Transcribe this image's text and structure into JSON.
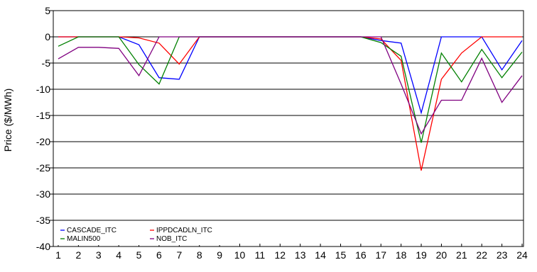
{
  "chart_data": {
    "type": "line",
    "title": "",
    "xlabel": "",
    "ylabel": "Price ($/MWh)",
    "x": [
      1,
      2,
      3,
      4,
      5,
      6,
      7,
      8,
      9,
      10,
      11,
      12,
      13,
      14,
      15,
      16,
      17,
      18,
      19,
      20,
      21,
      22,
      23,
      24
    ],
    "ylim": [
      -40,
      5
    ],
    "yticks": [
      5,
      0,
      -5,
      -10,
      -15,
      -20,
      -25,
      -30,
      -35,
      -40
    ],
    "grid": "horizontal",
    "legend_position": "bottom-left",
    "series": [
      {
        "name": "CASCADE_ITC",
        "color": "#0000ff",
        "values": [
          0,
          0,
          0,
          0,
          -1.5,
          -7.8,
          -8.1,
          0,
          0,
          0,
          0,
          0,
          0,
          0,
          0,
          0,
          -0.7,
          -1.2,
          -14.5,
          0,
          0,
          0,
          -6.3,
          -0.7
        ]
      },
      {
        "name": "IPPDCADLN_ITC",
        "color": "#ff0000",
        "values": [
          0,
          0,
          0,
          0,
          -0.2,
          -1.2,
          -5.2,
          0,
          0,
          0,
          0,
          0,
          0,
          0,
          0,
          0,
          -0.4,
          -4.5,
          -25.5,
          -8.1,
          -3.1,
          0,
          0,
          0
        ]
      },
      {
        "name": "MALIN500",
        "color": "#008000",
        "values": [
          -1.8,
          0,
          0,
          0,
          -5.3,
          -9.0,
          0,
          0,
          0,
          0,
          0,
          0,
          0,
          0,
          0,
          0,
          -1.1,
          -3.7,
          -20.2,
          -3.1,
          -8.6,
          -2.4,
          -7.8,
          -2.9
        ]
      },
      {
        "name": "NOB_ITC",
        "color": "#800080",
        "values": [
          -4.2,
          -2.0,
          -2.0,
          -2.2,
          -7.4,
          0,
          0,
          0,
          0,
          0,
          0,
          0,
          0,
          0,
          0,
          0,
          0,
          -9.0,
          -18.5,
          -12.1,
          -12.1,
          -4.1,
          -12.5,
          -7.4
        ]
      }
    ]
  }
}
